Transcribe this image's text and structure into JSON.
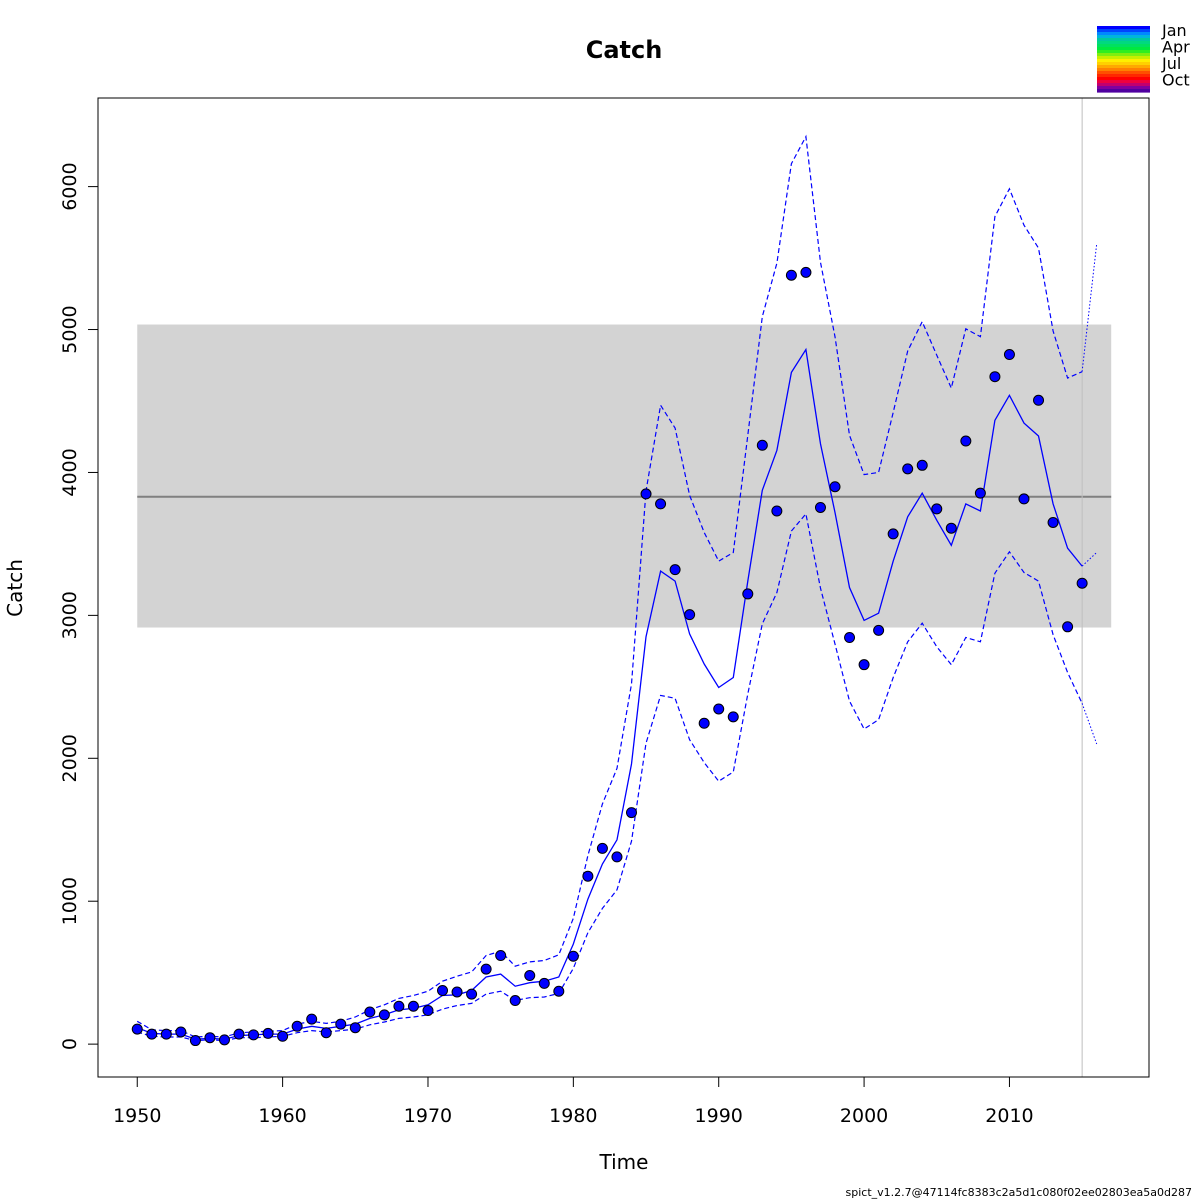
{
  "chart_data": {
    "type": "line",
    "title": "Catch",
    "xlabel": "Time",
    "ylabel": "Catch",
    "xlim": [
      1947.3,
      2019.6
    ],
    "ylim": [
      -230,
      6620
    ],
    "xticks": [
      1950,
      1960,
      1970,
      1980,
      1990,
      2000,
      2010
    ],
    "yticks": [
      0,
      1000,
      2000,
      3000,
      4000,
      5000,
      6000
    ],
    "band": {
      "x_start": 1950,
      "x_end": 2017,
      "lower": 2915,
      "upper": 5035,
      "center": 3830,
      "fill_color": "#d3d3d3",
      "center_color": "#808080"
    },
    "vline": {
      "x": 2015,
      "color": "#bebebe"
    },
    "observed": {
      "x": [
        1950,
        1951,
        1952,
        1953,
        1954,
        1955,
        1956,
        1957,
        1958,
        1959,
        1960,
        1961,
        1962,
        1963,
        1964,
        1965,
        1966,
        1967,
        1968,
        1969,
        1970,
        1971,
        1972,
        1973,
        1974,
        1975,
        1976,
        1977,
        1978,
        1979,
        1980,
        1981,
        1982,
        1983,
        1984,
        1985,
        1986,
        1987,
        1988,
        1989,
        1990,
        1991,
        1992,
        1993,
        1994,
        1995,
        1996,
        1997,
        1998,
        1999,
        2000,
        2001,
        2002,
        2003,
        2004,
        2005,
        2006,
        2007,
        2008,
        2009,
        2010,
        2011,
        2012,
        2013,
        2014,
        2015
      ],
      "y": [
        105,
        70,
        70,
        85,
        25,
        45,
        30,
        70,
        65,
        75,
        55,
        125,
        175,
        80,
        140,
        115,
        225,
        205,
        265,
        265,
        235,
        375,
        365,
        350,
        525,
        620,
        305,
        480,
        425,
        370,
        615,
        1175,
        1370,
        1310,
        1620,
        3850,
        3780,
        3320,
        3005,
        2245,
        2345,
        2290,
        3150,
        4190,
        3730,
        5380,
        5400,
        3755,
        3900,
        2845,
        2655,
        2895,
        3570,
        4025,
        4050,
        3745,
        3610,
        4220,
        3855,
        4670,
        4825,
        3815,
        4505,
        3650,
        2920,
        3225
      ],
      "color": "#0000ff"
    },
    "fitted": {
      "x": [
        1950,
        1951,
        1952,
        1953,
        1954,
        1955,
        1956,
        1957,
        1958,
        1959,
        1960,
        1961,
        1962,
        1963,
        1964,
        1965,
        1966,
        1967,
        1968,
        1969,
        1970,
        1971,
        1972,
        1973,
        1974,
        1975,
        1976,
        1977,
        1978,
        1979,
        1980,
        1981,
        1982,
        1983,
        1984,
        1985,
        1986,
        1987,
        1988,
        1989,
        1990,
        1991,
        1992,
        1993,
        1994,
        1995,
        1996,
        1997,
        1998,
        1999,
        2000,
        2001,
        2002,
        2003,
        2004,
        2005,
        2006,
        2007,
        2008,
        2009,
        2010,
        2011,
        2012,
        2013,
        2014,
        2015
      ],
      "y": [
        115,
        75,
        70,
        70,
        35,
        40,
        35,
        60,
        65,
        70,
        70,
        105,
        125,
        110,
        125,
        140,
        180,
        205,
        240,
        250,
        275,
        340,
        345,
        375,
        470,
        490,
        405,
        430,
        440,
        470,
        700,
        1015,
        1260,
        1430,
        1960,
        2850,
        3310,
        3240,
        2870,
        2660,
        2495,
        2565,
        3240,
        3875,
        4155,
        4700,
        4860,
        4200,
        3720,
        3195,
        2965,
        3015,
        3380,
        3690,
        3855,
        3665,
        3490,
        3780,
        3730,
        4365,
        4540,
        4345,
        4255,
        3780,
        3470,
        3345
      ],
      "color": "#0000ff"
    },
    "upper_ci": {
      "x": [
        1950,
        1951,
        1952,
        1953,
        1954,
        1955,
        1956,
        1957,
        1958,
        1959,
        1960,
        1961,
        1962,
        1963,
        1964,
        1965,
        1966,
        1967,
        1968,
        1969,
        1970,
        1971,
        1972,
        1973,
        1974,
        1975,
        1976,
        1977,
        1978,
        1979,
        1980,
        1981,
        1982,
        1983,
        1984,
        1985,
        1986,
        1987,
        1988,
        1989,
        1990,
        1991,
        1992,
        1993,
        1994,
        1995,
        1996,
        1997,
        1998,
        1999,
        2000,
        2001,
        2002,
        2003,
        2004,
        2005,
        2006,
        2007,
        2008,
        2009,
        2010,
        2011,
        2012,
        2013,
        2014,
        2015
      ],
      "y": [
        160,
        100,
        95,
        95,
        50,
        55,
        50,
        80,
        85,
        90,
        95,
        140,
        160,
        145,
        160,
        190,
        240,
        275,
        320,
        340,
        370,
        440,
        475,
        505,
        620,
        650,
        545,
        575,
        585,
        625,
        880,
        1320,
        1680,
        1930,
        2520,
        3870,
        4470,
        4310,
        3840,
        3580,
        3380,
        3440,
        4260,
        5090,
        5465,
        6160,
        6350,
        5470,
        4950,
        4260,
        3985,
        4000,
        4420,
        4850,
        5055,
        4820,
        4590,
        5005,
        4950,
        5790,
        5985,
        5730,
        5570,
        4990,
        4660,
        4705
      ],
      "color": "#0000ff"
    },
    "lower_ci": {
      "x": [
        1950,
        1951,
        1952,
        1953,
        1954,
        1955,
        1956,
        1957,
        1958,
        1959,
        1960,
        1961,
        1962,
        1963,
        1964,
        1965,
        1966,
        1967,
        1968,
        1969,
        1970,
        1971,
        1972,
        1973,
        1974,
        1975,
        1976,
        1977,
        1978,
        1979,
        1980,
        1981,
        1982,
        1983,
        1984,
        1985,
        1986,
        1987,
        1988,
        1989,
        1990,
        1991,
        1992,
        1993,
        1994,
        1995,
        1996,
        1997,
        1998,
        1999,
        2000,
        2001,
        2002,
        2003,
        2004,
        2005,
        2006,
        2007,
        2008,
        2009,
        2010,
        2011,
        2012,
        2013,
        2014,
        2015
      ],
      "y": [
        85,
        55,
        50,
        50,
        25,
        30,
        25,
        45,
        45,
        50,
        55,
        80,
        95,
        85,
        95,
        105,
        135,
        155,
        180,
        190,
        205,
        245,
        270,
        285,
        350,
        370,
        305,
        325,
        330,
        355,
        530,
        780,
        950,
        1080,
        1420,
        2105,
        2440,
        2420,
        2130,
        1970,
        1840,
        1905,
        2450,
        2940,
        3160,
        3590,
        3710,
        3190,
        2800,
        2400,
        2205,
        2270,
        2565,
        2815,
        2945,
        2780,
        2655,
        2845,
        2815,
        3295,
        3445,
        3300,
        3240,
        2865,
        2600,
        2385
      ],
      "color": "#0000ff"
    },
    "prediction": {
      "x": [
        2015,
        2016
      ],
      "fitted": [
        3345,
        3440
      ],
      "upper": [
        4705,
        5600
      ],
      "lower": [
        2385,
        2100
      ]
    },
    "legend": {
      "position": "top-right",
      "entries": [
        "Jan",
        "Apr",
        "Jul",
        "Oct"
      ],
      "colors": [
        "#0000ff",
        "#0044ff",
        "#0088ff",
        "#00b4dd",
        "#00c8a0",
        "#00d880",
        "#00e060",
        "#00e840",
        "#30ee20",
        "#80ee10",
        "#c8ee00",
        "#ffee00",
        "#ffd000",
        "#ffa800",
        "#ff8000",
        "#ff5000",
        "#ff2800",
        "#ff0000",
        "#ee0040",
        "#c00070",
        "#8000a0",
        "#5000a0"
      ]
    },
    "footer": "spict_v1.2.7@47114fc8383c2a5d1c080f02ee02803ea5a0d287"
  }
}
